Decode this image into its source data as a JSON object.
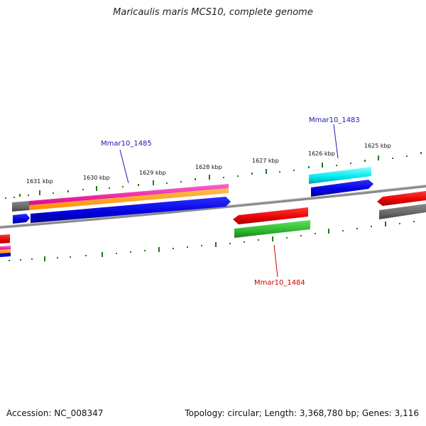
{
  "title": "Maricaulis maris MCS10, complete genome",
  "footer": {
    "accession": "Accession: NC_008347",
    "summary": "Topology: circular; Length: 3,368,780 bp; Genes: 3,116"
  },
  "colors": {
    "backbone": "#8a8a8a",
    "ticks": "#1f7a1f",
    "label_blue": "#1a1ab5",
    "label_red": "#cc0000"
  },
  "scale": {
    "ticks": [
      "1631 kbp",
      "1630 kbp",
      "1629 kbp",
      "1628 kbp",
      "1627 kbp",
      "1626 kbp",
      "1625 kbp"
    ]
  },
  "features": [
    {
      "label": "Mmar10_1485",
      "color": "blue"
    },
    {
      "label": "Mmar10_1483",
      "color": "blue"
    },
    {
      "label": "Mmar10_1484",
      "color": "red"
    }
  ]
}
